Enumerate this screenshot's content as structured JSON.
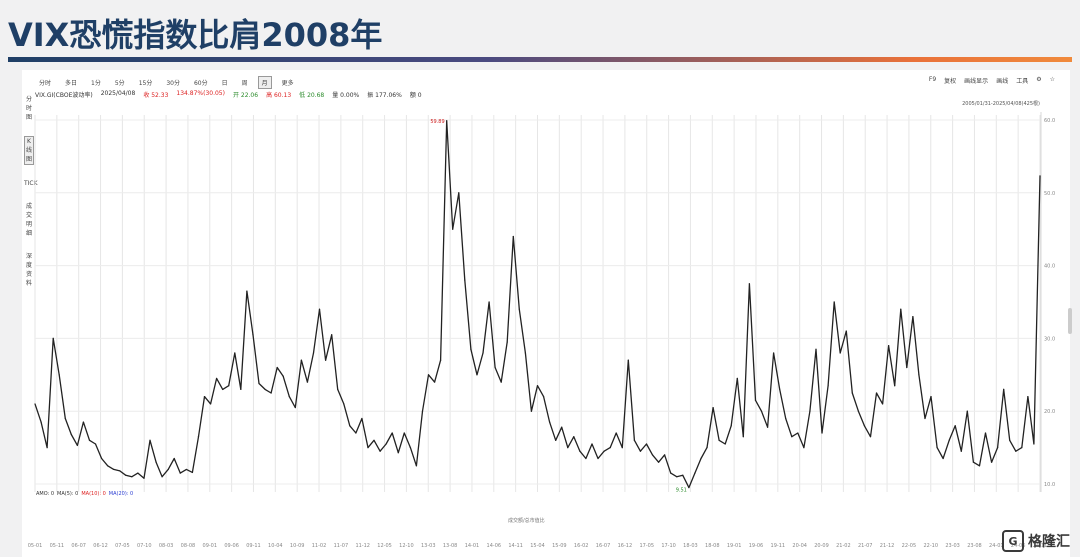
{
  "page_title": "VIX恐慌指数比肩2008年",
  "toolbar": {
    "periods": [
      "分时",
      "多日",
      "1分",
      "5分",
      "15分",
      "30分",
      "60分",
      "日",
      "周",
      "月",
      "更多"
    ],
    "selected_period": "月",
    "right_tools": [
      "F9",
      "复权",
      "画线显示",
      "画线",
      "工具",
      "⚙",
      "☆"
    ]
  },
  "info": {
    "symbol": "VIX.GI(CBOE波动率)",
    "date": "2025/04/08",
    "items": [
      {
        "text": "收 52.33",
        "color": "red"
      },
      {
        "text": "134.87%(30.05)",
        "color": "red"
      },
      {
        "text": "开 22.06",
        "color": "green"
      },
      {
        "text": "高 60.13",
        "color": "red"
      },
      {
        "text": "低 20.68",
        "color": "green"
      },
      {
        "text": "量 0.00%",
        "color": "normal"
      },
      {
        "text": "振 177.06%",
        "color": "normal"
      },
      {
        "text": "额 0",
        "color": "normal"
      }
    ],
    "date_range": "2005/01/31-2025/04/08(425根)"
  },
  "side_tools": [
    "分时图",
    "K线图",
    "TICK",
    "成交明细",
    "深度资料"
  ],
  "ma_legend": {
    "label": "AMO: 0",
    "items": [
      {
        "text": "MA(5): 0",
        "color": "normal"
      },
      {
        "text": "MA(10): 0",
        "color": "red"
      },
      {
        "text": "MA(20): 0",
        "color": "blue"
      }
    ]
  },
  "bottom_label": "成交额/总市值比",
  "watermark": "格隆汇",
  "colors": {
    "title": "#1f3f66",
    "line": "#222222",
    "max_label": "#d22222",
    "min_label": "#2a8a2a"
  },
  "chart_data": {
    "type": "line",
    "title": "",
    "xlabel": "",
    "ylabel": "",
    "ylim": [
      10,
      60
    ],
    "yticks": [
      10,
      20,
      30,
      40,
      50,
      60
    ],
    "ytick_labels": [
      "10.0",
      "20.0",
      "30.0",
      "40.0",
      "50.0",
      "60.0"
    ],
    "xticks": [
      "05-01",
      "05-11",
      "06-07",
      "06-12",
      "07-05",
      "07-10",
      "08-03",
      "08-08",
      "09-01",
      "09-06",
      "09-11",
      "10-04",
      "10-09",
      "11-02",
      "11-07",
      "11-12",
      "12-05",
      "12-10",
      "13-03",
      "13-08",
      "14-01",
      "14-06",
      "14-11",
      "15-04",
      "15-09",
      "16-02",
      "16-07",
      "16-12",
      "17-05",
      "17-10",
      "18-03",
      "18-08",
      "19-01",
      "19-06",
      "19-11",
      "20-04",
      "20-09",
      "21-02",
      "21-07",
      "21-12",
      "22-05",
      "22-10",
      "23-03",
      "23-08",
      "24-01",
      "24-06",
      "24-11"
    ],
    "annotations": [
      {
        "text": "59.89",
        "type": "max"
      },
      {
        "text": "9.51",
        "type": "min"
      }
    ],
    "series": [
      {
        "values": [
          21.0,
          18.5,
          15.0,
          30.0,
          25.0,
          19.0,
          16.8,
          15.3,
          18.5,
          16.0,
          15.5,
          13.5,
          12.5,
          12.0,
          11.8,
          11.2,
          11.0,
          11.5,
          10.8,
          16.0,
          13.0,
          11.0,
          12.0,
          13.5,
          11.5,
          12.0,
          11.6,
          16.5,
          22.0,
          21.0,
          24.5,
          23.0,
          23.5,
          28.0,
          23.0,
          36.5,
          30.5,
          23.8,
          23.0,
          22.5,
          26.0,
          24.8,
          22.0,
          20.5,
          27.0,
          24.0,
          28.0,
          34.0,
          27.0,
          30.5,
          23.0,
          21.0,
          18.0,
          17.0,
          19.0,
          15.0,
          16.0,
          14.5,
          15.5,
          17.0,
          14.3,
          17.0,
          15.0,
          12.5,
          20.0,
          25.0,
          24.0,
          27.0,
          59.89,
          45.0,
          50.0,
          38.0,
          28.5,
          25.0,
          28.0,
          35.0,
          26.0,
          24.0,
          29.5,
          44.0,
          34.0,
          28.0,
          20.0,
          23.5,
          22.0,
          18.5,
          16.0,
          17.8,
          15.0,
          16.5,
          14.5,
          13.5,
          15.5,
          13.5,
          14.5,
          15.0,
          17.0,
          15.0,
          27.0,
          16.0,
          14.5,
          15.5,
          14.0,
          13.0,
          14.0,
          11.5,
          11.0,
          11.2,
          9.51,
          11.5,
          13.5,
          15.0,
          20.5,
          16.0,
          15.5,
          18.0,
          24.5,
          16.5,
          37.5,
          21.5,
          20.0,
          17.8,
          28.0,
          23.0,
          19.0,
          16.5,
          17.0,
          15.0,
          20.0,
          28.5,
          17.0,
          23.5,
          35.0,
          28.0,
          31.0,
          22.5,
          20.0,
          18.0,
          16.5,
          22.5,
          21.0,
          29.0,
          23.5,
          34.0,
          26.0,
          33.0,
          25.0,
          19.0,
          22.0,
          15.0,
          13.5,
          16.0,
          18.0,
          14.5,
          20.0,
          13.0,
          12.5,
          17.0,
          13.0,
          15.0,
          23.0,
          16.0,
          14.5,
          15.0,
          22.0,
          15.5,
          52.33
        ]
      }
    ]
  }
}
